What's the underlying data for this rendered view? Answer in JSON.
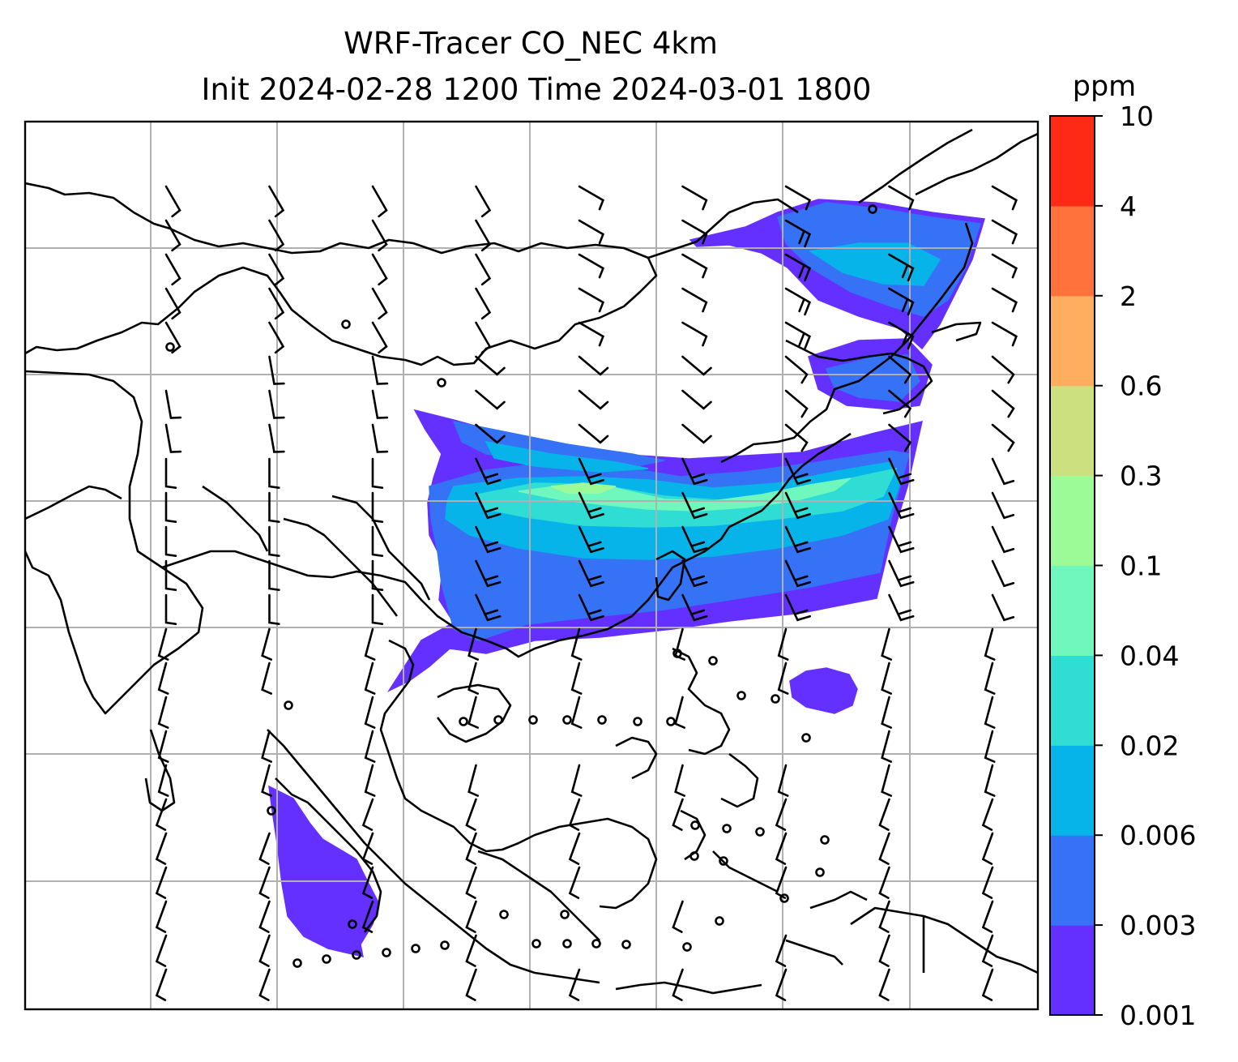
{
  "chart_data": {
    "type": "heatmap",
    "title": "WRF-Tracer CO_NEC 4km",
    "subtitle": "Init 2024-02-28 1200 Time 2024-03-01 1800",
    "colorbar": {
      "label": "ppm",
      "tick_labels": [
        "0.001",
        "0.003",
        "0.006",
        "0.02",
        "0.04",
        "0.1",
        "0.3",
        "0.6",
        "2",
        "4",
        "10"
      ],
      "colors": [
        "#6430ff",
        "#3572f5",
        "#07b4ea",
        "#30ddd5",
        "#6ff7bd",
        "#9dfb97",
        "#cce080",
        "#ffae60",
        "#ff723c",
        "#ff2a15"
      ]
    },
    "grid": true,
    "overlays": [
      "coastlines",
      "country borders",
      "wind barbs"
    ],
    "plume_regions": [
      {
        "name": "main plume (East China Sea / Western Pacific)",
        "level_range": [
          "0.001",
          "0.1"
        ]
      },
      {
        "name": "northeast plume (Sea of Japan)",
        "level_range": [
          "0.001",
          "0.006"
        ]
      },
      {
        "name": "Sumatra (western)",
        "level_range": [
          "0.001",
          "0.003"
        ]
      },
      {
        "name": "east of Philippines",
        "level_range": [
          "0.001",
          "0.003"
        ]
      }
    ]
  }
}
